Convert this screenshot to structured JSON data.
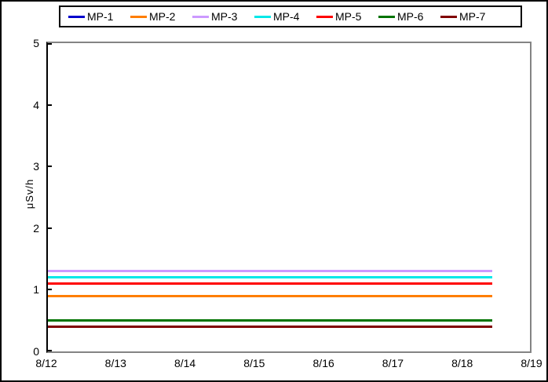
{
  "chart_data": {
    "type": "line",
    "title": "",
    "xlabel": "",
    "ylabel": "μSv/h",
    "ylim": [
      0,
      5
    ],
    "yticks": [
      0,
      1,
      2,
      3,
      4,
      5
    ],
    "xticks": [
      "8/12",
      "8/13",
      "8/14",
      "8/15",
      "8/16",
      "8/17",
      "8/18",
      "8/19"
    ],
    "x_range_days": [
      0,
      7
    ],
    "grid": "off",
    "legend_position": "top",
    "series_x_span_days": [
      0,
      6.45
    ],
    "series": [
      {
        "name": "MP-1",
        "color": "#0000CC",
        "value": 1.1,
        "note": "flat line, not separately visible — coincides with / hidden beneath another series"
      },
      {
        "name": "MP-2",
        "color": "#FF7E00",
        "value": 0.9
      },
      {
        "name": "MP-3",
        "color": "#CC99FF",
        "value": 1.3
      },
      {
        "name": "MP-4",
        "color": "#00E8E8",
        "value": 1.2
      },
      {
        "name": "MP-5",
        "color": "#FF0000",
        "value": 1.1
      },
      {
        "name": "MP-6",
        "color": "#007300",
        "value": 0.5
      },
      {
        "name": "MP-7",
        "color": "#800000",
        "value": 0.4
      }
    ]
  }
}
